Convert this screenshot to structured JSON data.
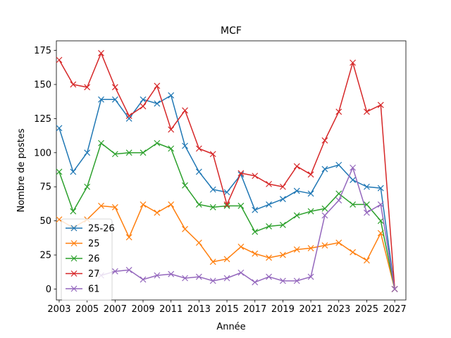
{
  "chart_data": {
    "type": "line",
    "title": "MCF",
    "xlabel": "Année",
    "ylabel": "Nombre de postes",
    "xlim": [
      2002.8,
      2027.8
    ],
    "ylim": [
      -8,
      182
    ],
    "x": [
      2003,
      2004,
      2005,
      2006,
      2007,
      2008,
      2009,
      2010,
      2011,
      2012,
      2013,
      2014,
      2015,
      2016,
      2017,
      2018,
      2019,
      2020,
      2021,
      2022,
      2023,
      2024,
      2025,
      2026,
      2027
    ],
    "xticks": [
      "2003",
      "2005",
      "2007",
      "2009",
      "2011",
      "2013",
      "2015",
      "2017",
      "2019",
      "2021",
      "2023",
      "2025",
      "2027"
    ],
    "yticks": [
      "0",
      "25",
      "50",
      "75",
      "100",
      "125",
      "150",
      "175"
    ],
    "marker": "x",
    "grid": false,
    "legend_position": "lower-left",
    "series": [
      {
        "name": "25-26",
        "color": "#1f77b4",
        "values": [
          118,
          86,
          100,
          139,
          139,
          125,
          139,
          136,
          142,
          105,
          86,
          73,
          71,
          84,
          58,
          62,
          66,
          72,
          70,
          88,
          91,
          80,
          75,
          74,
          0
        ]
      },
      {
        "name": "25",
        "color": "#ff7f0e",
        "values": [
          51,
          45,
          51,
          61,
          60,
          38,
          62,
          56,
          62,
          44,
          34,
          20,
          22,
          31,
          26,
          23,
          25,
          29,
          30,
          32,
          34,
          27,
          21,
          41,
          0
        ]
      },
      {
        "name": "26",
        "color": "#2ca02c",
        "values": [
          86,
          57,
          75,
          107,
          99,
          100,
          100,
          107,
          103,
          76,
          62,
          60,
          61,
          61,
          42,
          46,
          47,
          54,
          57,
          59,
          70,
          62,
          62,
          50,
          0
        ]
      },
      {
        "name": "27",
        "color": "#d62728",
        "values": [
          168,
          150,
          148,
          173,
          148,
          127,
          134,
          149,
          117,
          131,
          103,
          99,
          62,
          85,
          83,
          77,
          75,
          90,
          84,
          109,
          130,
          166,
          130,
          135,
          0
        ]
      },
      {
        "name": "61",
        "color": "#9467bd",
        "values": [
          null,
          null,
          null,
          10,
          13,
          14,
          7,
          10,
          11,
          8,
          9,
          6,
          8,
          12,
          5,
          9,
          6,
          6,
          9,
          54,
          65,
          89,
          56,
          62,
          0
        ]
      }
    ]
  }
}
